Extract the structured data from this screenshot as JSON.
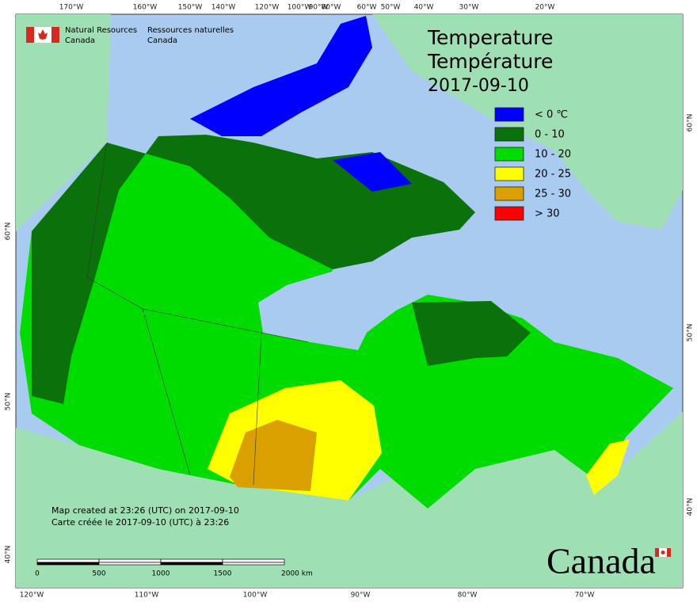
{
  "header": {
    "agency_en": [
      "Natural Resources",
      "Canada"
    ],
    "agency_fr": [
      "Ressources naturelles",
      "Canada"
    ]
  },
  "title": [
    "Temperature",
    "Température",
    "2017-09-10"
  ],
  "legend": [
    {
      "label": "< 0 ℃",
      "color": "#0000ff"
    },
    {
      "label": "0 - 10",
      "color": "#0b720b"
    },
    {
      "label": "10 - 20",
      "color": "#00dc00"
    },
    {
      "label": "20 - 25",
      "color": "#ffff00"
    },
    {
      "label": "25 - 30",
      "color": "#d9a000"
    },
    {
      "label": "> 30",
      "color": "#ff0000"
    }
  ],
  "graticule": {
    "top": [
      "170°W",
      "160°W",
      "150°W",
      "140°W",
      "120°W",
      "100°W",
      "90°W",
      "80°W",
      "60°W",
      "50°W",
      "40°W",
      "30°W",
      "20°W"
    ],
    "bottom": [
      "120°W",
      "110°W",
      "100°W",
      "90°W",
      "80°W",
      "70°W"
    ],
    "left": [
      "60°N",
      "50°N",
      "40°N"
    ],
    "right": [
      "60°N",
      "50°N",
      "40°N"
    ]
  },
  "notes": [
    "Map created at 23:26 (UTC) on 2017-09-10",
    "Carte créée le 2017-09-10 (UTC) à 23:26"
  ],
  "scale_bar": [
    "0",
    "500",
    "1000",
    "1500",
    "2000  km"
  ],
  "wordmark": "Canada"
}
